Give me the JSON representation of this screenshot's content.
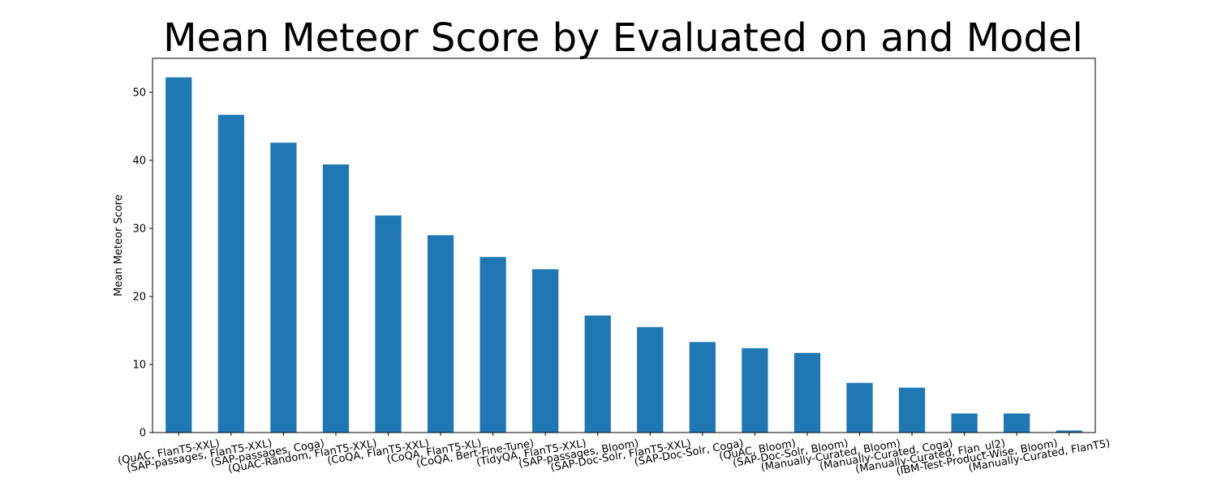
{
  "chart_data": {
    "type": "bar",
    "title": "Mean Meteor Score by Evaluated on and Model",
    "xlabel": "",
    "ylabel": "Mean Meteor Score",
    "ylim": [
      0,
      55
    ],
    "yticks": [
      0,
      10,
      20,
      30,
      40,
      50
    ],
    "grid": false,
    "bar_color": "#1f77b4",
    "categories": [
      "(QuAC, FlanT5-XXL)",
      "(SAP-passages, FlanT5-XXL)",
      "(SAP-passages, Coga)",
      "(QuAC-Random, FlanT5-XXL)",
      "(CoQA, FlanT5-XXL)",
      "(CoQA, FlanT5-XL)",
      "(CoQA, Bert-Fine-Tune)",
      "(TidyQA, FlanT5-XXL)",
      "(SAP-passages, Bloom)",
      "(SAP-Doc-Solr, FlanT5-XXL)",
      "(SAP-Doc-Solr, Coga)",
      "(QuAC, Bloom)",
      "(SAP-Doc-Solr, Bloom)",
      "(Manually-Curated, Bloom)",
      "(Manually-Curated, Coga)",
      "(Manually-Curated, Flan_ul2)",
      "(IBM-Test-Product-Wise, Bloom)",
      "(Manually-Curated, FlanT5)"
    ],
    "values": [
      52.2,
      46.7,
      42.6,
      39.4,
      31.9,
      29.0,
      25.8,
      24.0,
      17.2,
      15.5,
      13.3,
      12.4,
      11.7,
      7.3,
      6.6,
      2.8,
      2.8,
      0.3
    ]
  }
}
